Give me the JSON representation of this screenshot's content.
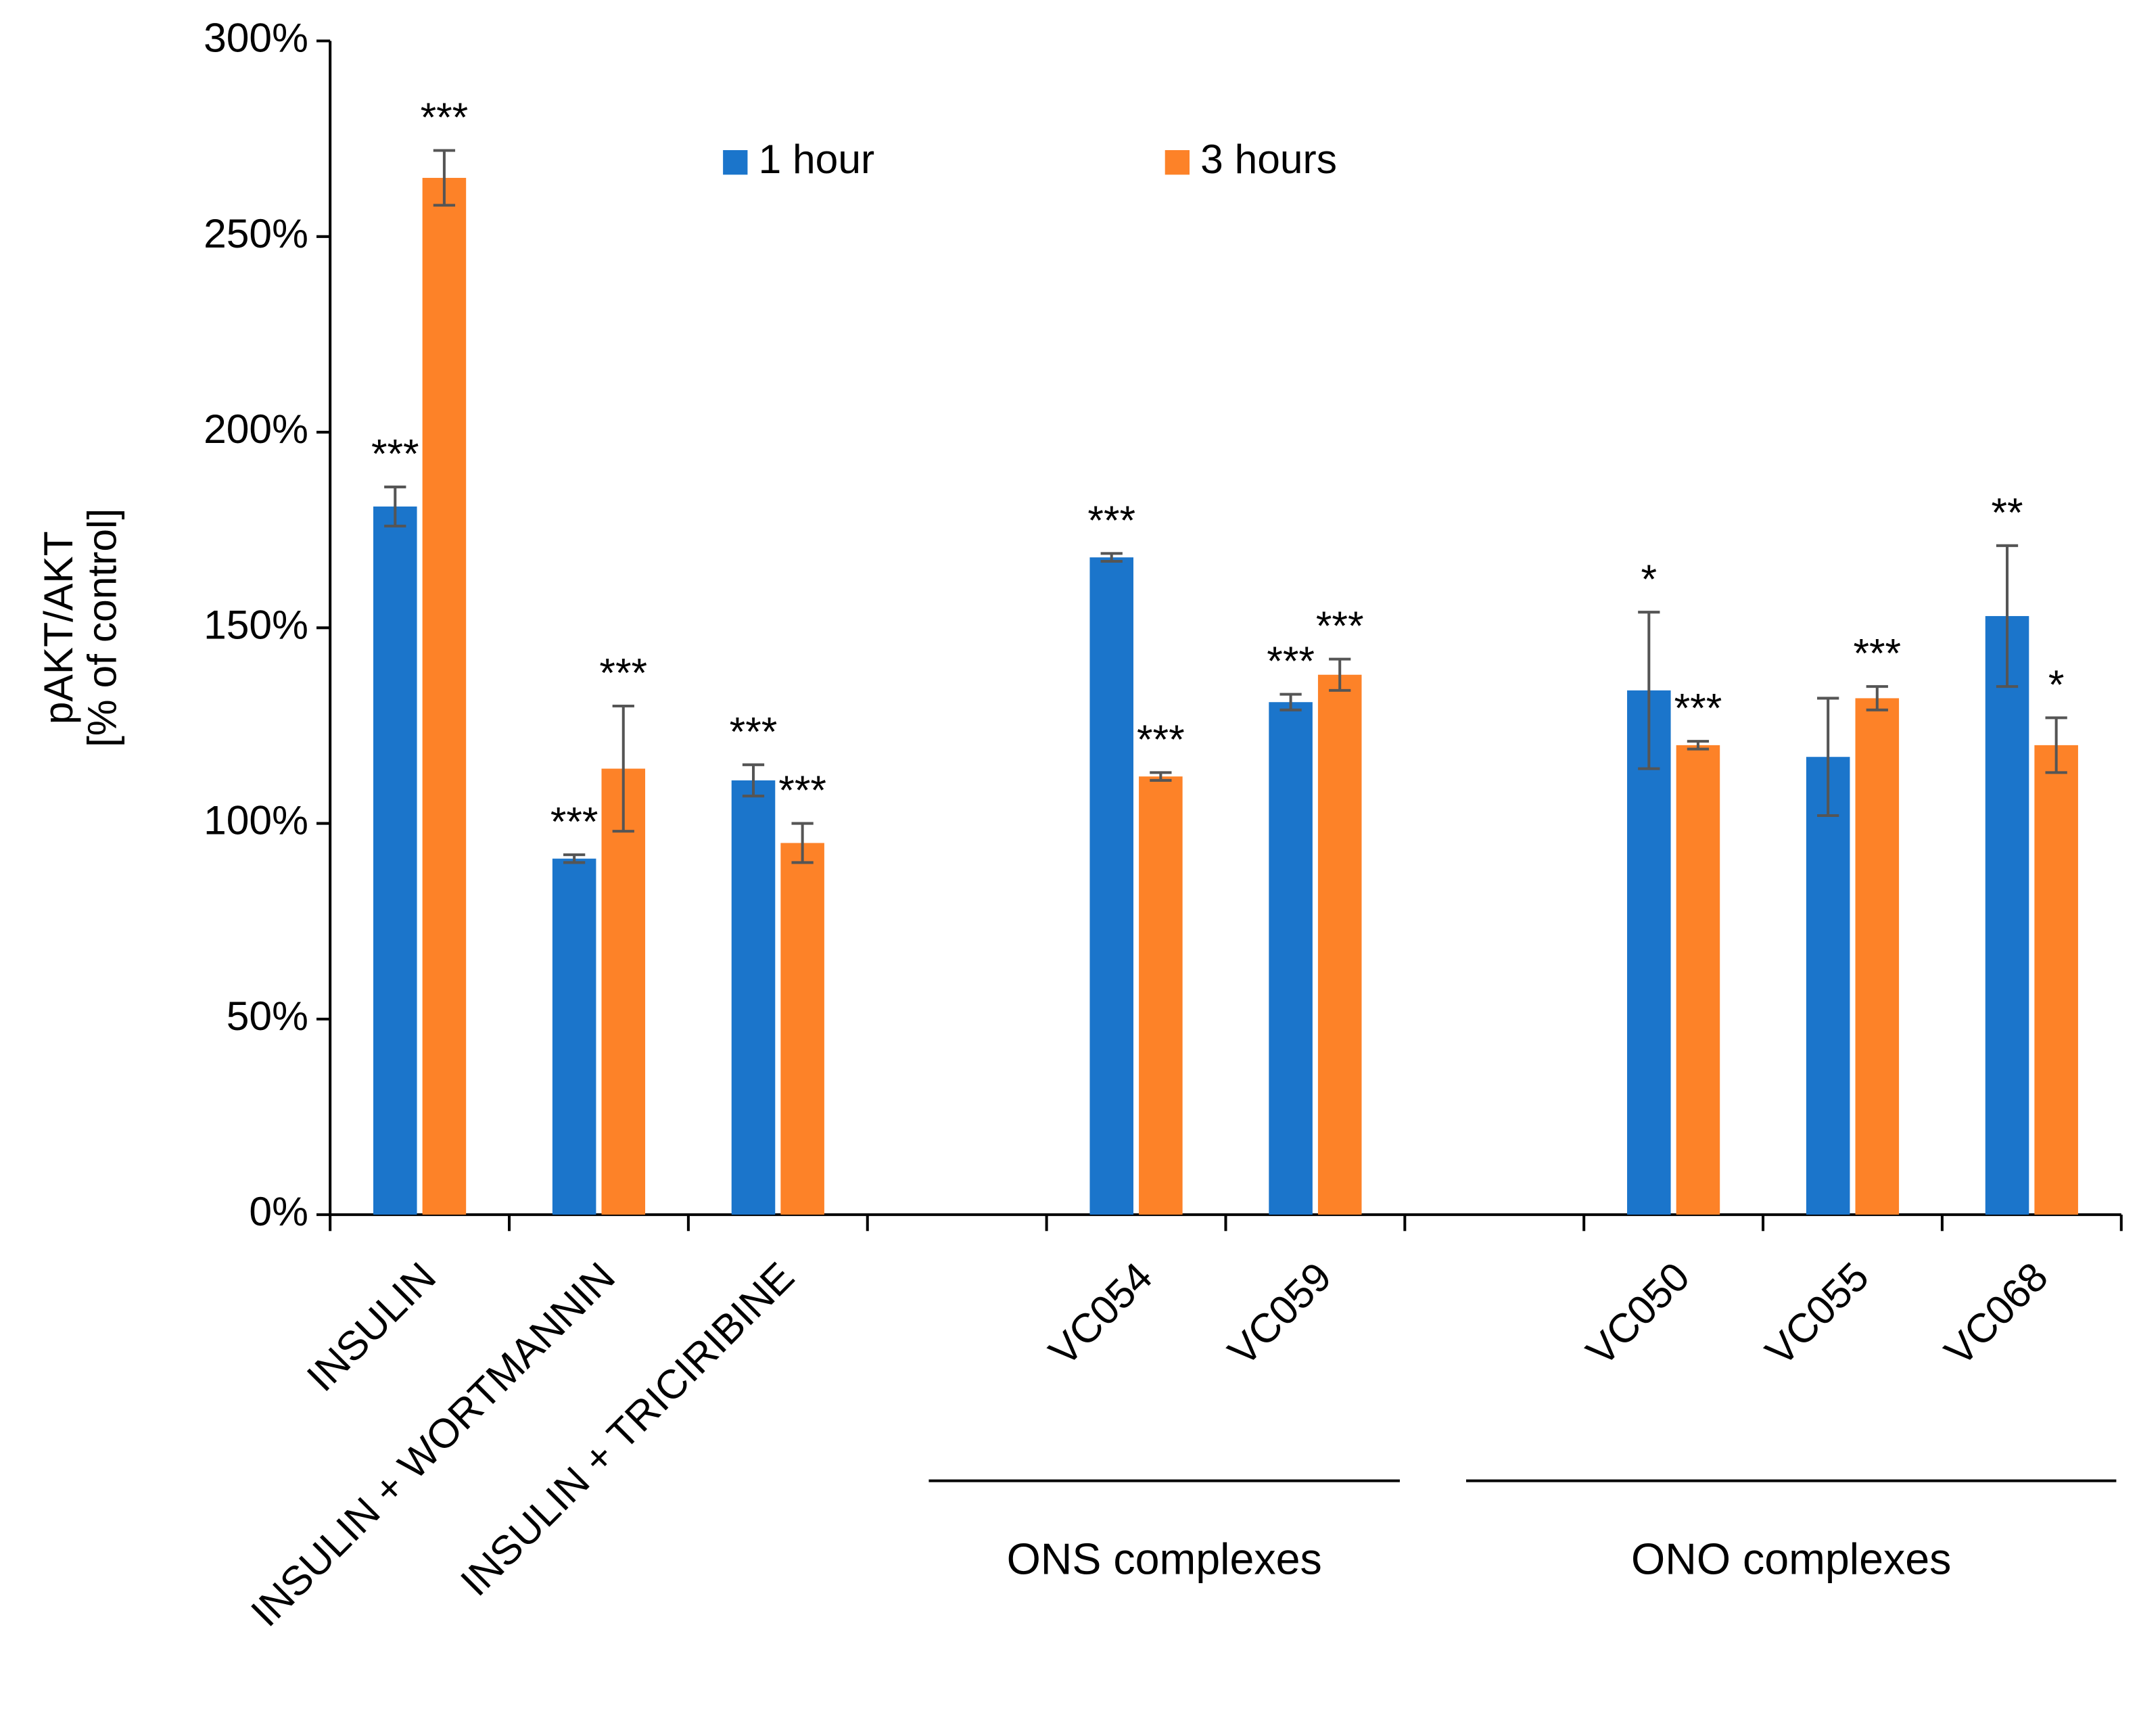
{
  "chart_data": {
    "type": "bar",
    "ylabel": [
      "pAKT/AKT",
      "[% of control]"
    ],
    "categories": [
      "INSULIN",
      "INSULIN + WORTMANNIN",
      "INSULIN + TRICIRIBINE",
      null,
      "VC054",
      "VC059",
      null,
      "VC050",
      "VC055",
      "VC068"
    ],
    "series": [
      {
        "name": "1 hour",
        "color": "#1b75cb",
        "values": [
          181,
          91,
          111,
          null,
          168,
          131,
          null,
          134,
          117,
          153
        ],
        "errors": [
          5,
          1,
          4,
          null,
          1,
          2,
          null,
          20,
          15,
          18
        ],
        "annotations": [
          "***",
          "***",
          "***",
          null,
          "***",
          "***",
          null,
          "*",
          null,
          "**"
        ]
      },
      {
        "name": "3 hours",
        "color": "#fd8228",
        "values": [
          265,
          114,
          95,
          null,
          112,
          138,
          null,
          120,
          132,
          120
        ],
        "errors": [
          7,
          16,
          5,
          null,
          1,
          4,
          null,
          1,
          3,
          7
        ],
        "annotations": [
          "***",
          "***",
          "***",
          null,
          "***",
          "***",
          null,
          "***",
          "***",
          "*"
        ]
      }
    ],
    "groups": [
      {
        "label": "ONS complexes",
        "members": [
          "VC054",
          "VC059"
        ]
      },
      {
        "label": "ONO complexes",
        "members": [
          "VC050",
          "VC055",
          "VC068"
        ]
      }
    ],
    "ylim": [
      0,
      300
    ],
    "yticks": [
      {
        "value": 0,
        "label": "0%"
      },
      {
        "value": 50,
        "label": "50%"
      },
      {
        "value": 100,
        "label": "100%"
      },
      {
        "value": 150,
        "label": "150%"
      },
      {
        "value": 200,
        "label": "200%"
      },
      {
        "value": 250,
        "label": "250%"
      },
      {
        "value": 300,
        "label": "300%"
      }
    ],
    "legend": "top"
  }
}
